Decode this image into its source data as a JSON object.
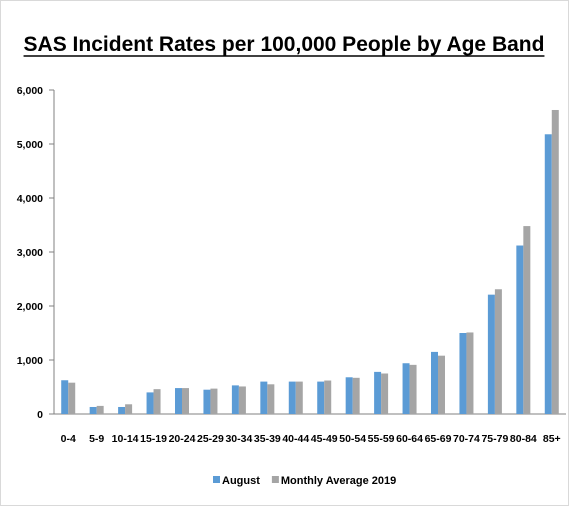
{
  "chart_data": {
    "type": "bar",
    "title": "SAS Incident Rates per 100,000 People by Age Band",
    "xlabel": "",
    "ylabel": "",
    "categories": [
      "0-4",
      "5-9",
      "10-14",
      "15-19",
      "20-24",
      "25-29",
      "30-34",
      "35-39",
      "40-44",
      "45-49",
      "50-54",
      "55-59",
      "60-64",
      "65-69",
      "70-74",
      "75-79",
      "80-84",
      "85+"
    ],
    "series": [
      {
        "name": "August",
        "color": "#5b9bd5",
        "values": [
          625,
          130,
          130,
          400,
          480,
          450,
          530,
          600,
          600,
          600,
          680,
          780,
          940,
          1150,
          1500,
          2210,
          3120,
          5180
        ]
      },
      {
        "name": "Monthly Average 2019",
        "color": "#a5a5a5",
        "values": [
          580,
          150,
          180,
          460,
          480,
          470,
          510,
          550,
          600,
          620,
          670,
          750,
          910,
          1080,
          1510,
          2310,
          3480,
          5630
        ]
      }
    ],
    "ylim": [
      0,
      6000
    ],
    "yticks": [
      "0",
      "1,000",
      "2,000",
      "3,000",
      "4,000",
      "5,000",
      "6,000"
    ],
    "grid": false,
    "legend_position": "bottom"
  }
}
